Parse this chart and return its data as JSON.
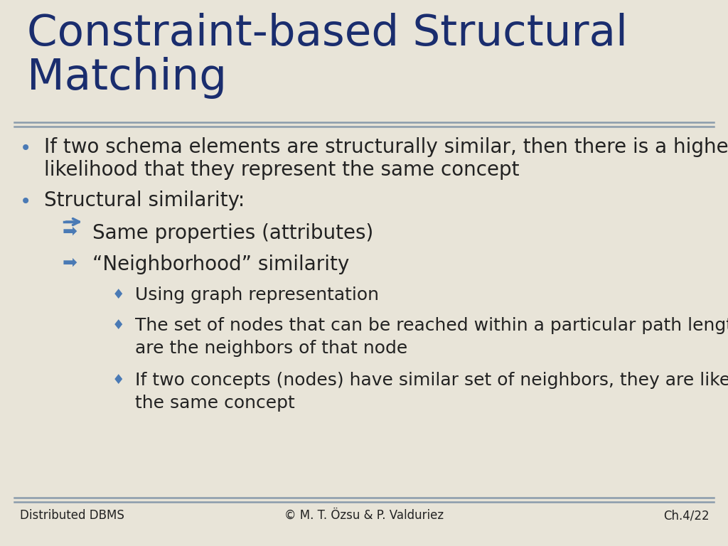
{
  "title_line1": "Constraint-based Structural",
  "title_line2": "Matching",
  "title_color": "#1a2d6e",
  "bg_color": "#e8e4d8",
  "content_color": "#222222",
  "bullet_color": "#4a7ab5",
  "separator_color": "#8a9bac",
  "footer_left": "Distributed DBMS",
  "footer_center": "© M. T. Özsu & P. Valduriez",
  "footer_right": "Ch.4/22",
  "bullet1_line1": "If two schema elements are structurally similar, then there is a higher",
  "bullet1_line2": "likelihood that they represent the same concept",
  "bullet2": "Structural similarity:",
  "arrow1": "Same properties (attributes)",
  "arrow2": "“Neighborhood” similarity",
  "diamond1": "Using graph representation",
  "diamond2_line1": "The set of nodes that can be reached within a particular path length from a node",
  "diamond2_line2": "are the neighbors of that node",
  "diamond3_line1": "If two concepts (nodes) have similar set of neighbors, they are likely to represent",
  "diamond3_line2": "the same concept",
  "title_fontsize": 44,
  "bullet_fontsize": 20,
  "arrow_fontsize": 20,
  "diamond_fontsize": 18,
  "footer_fontsize": 12
}
